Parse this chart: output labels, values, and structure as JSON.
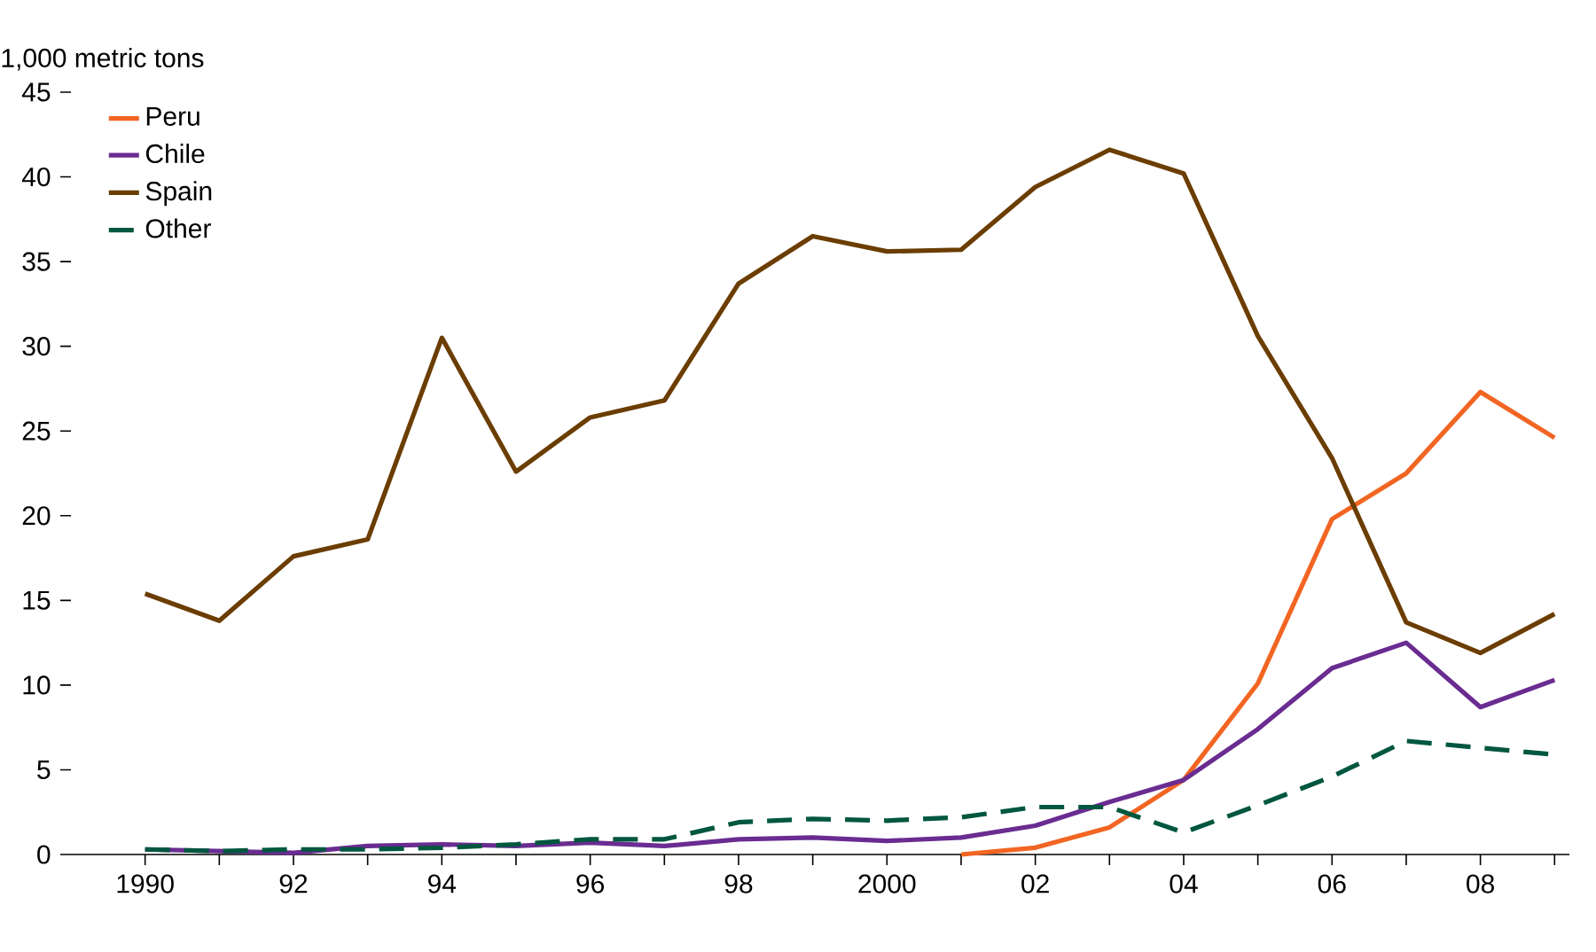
{
  "chart_data": {
    "type": "line",
    "ylabel": "1,000 metric tons",
    "x": [
      1990,
      1991,
      1992,
      1993,
      1994,
      1995,
      1996,
      1997,
      1998,
      1999,
      2000,
      2001,
      2002,
      2003,
      2004,
      2005,
      2006,
      2007,
      2008,
      2009
    ],
    "series": [
      {
        "name": "Peru",
        "color": "#f26522",
        "values": [
          null,
          null,
          null,
          null,
          null,
          null,
          null,
          null,
          null,
          null,
          null,
          0,
          0.4,
          1.6,
          4.4,
          10.1,
          19.8,
          22.5,
          27.3,
          24.6
        ]
      },
      {
        "name": "Chile",
        "color": "#6a2c91",
        "values": [
          0.3,
          0.2,
          0.1,
          0.5,
          0.6,
          0.5,
          0.7,
          0.5,
          0.9,
          1.0,
          0.8,
          1.0,
          1.7,
          3.1,
          4.4,
          7.4,
          11.0,
          12.5,
          8.7,
          10.3
        ]
      },
      {
        "name": "Spain",
        "color": "#6b3d00",
        "values": [
          15.4,
          13.8,
          17.6,
          18.6,
          30.5,
          22.6,
          25.8,
          26.8,
          33.7,
          36.5,
          35.6,
          35.7,
          39.4,
          41.6,
          40.2,
          30.6,
          23.4,
          13.7,
          11.9,
          14.2
        ]
      },
      {
        "name": "Other",
        "color": "#00573f",
        "line_style": "dashed",
        "values": [
          0.3,
          0.2,
          0.3,
          0.3,
          0.4,
          0.6,
          0.9,
          0.9,
          1.9,
          2.1,
          2.0,
          2.2,
          2.8,
          2.8,
          1.3,
          2.9,
          4.6,
          6.7,
          6.3,
          5.9
        ]
      }
    ],
    "xlim": [
      1989,
      2009.2
    ],
    "xticks": [
      {
        "value": 1990,
        "label": "1990"
      },
      {
        "value": 1991,
        "label": null
      },
      {
        "value": 1992,
        "label": "92"
      },
      {
        "value": 1993,
        "label": null
      },
      {
        "value": 1994,
        "label": "94"
      },
      {
        "value": 1995,
        "label": null
      },
      {
        "value": 1996,
        "label": "96"
      },
      {
        "value": 1997,
        "label": null
      },
      {
        "value": 1998,
        "label": "98"
      },
      {
        "value": 1999,
        "label": null
      },
      {
        "value": 2000,
        "label": "2000"
      },
      {
        "value": 2001,
        "label": null
      },
      {
        "value": 2002,
        "label": "02"
      },
      {
        "value": 2003,
        "label": null
      },
      {
        "value": 2004,
        "label": "04"
      },
      {
        "value": 2005,
        "label": null
      },
      {
        "value": 2006,
        "label": "06"
      },
      {
        "value": 2007,
        "label": null
      },
      {
        "value": 2008,
        "label": "08"
      },
      {
        "value": 2009,
        "label": null
      }
    ],
    "ylim": [
      0,
      45
    ],
    "yticks": [
      0,
      5,
      10,
      15,
      20,
      25,
      30,
      35,
      40,
      45
    ],
    "legend": "top left",
    "grid": false,
    "marker": "none"
  }
}
